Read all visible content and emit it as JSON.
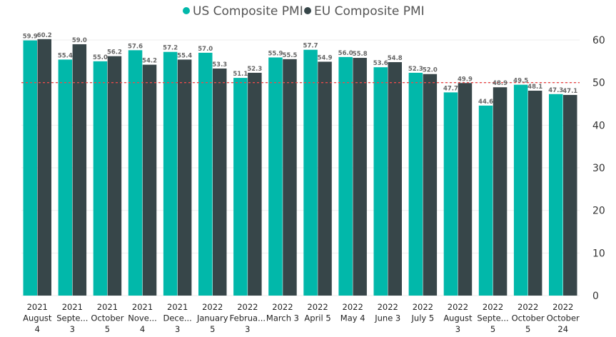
{
  "colors": {
    "us": "#01b8aa",
    "eu": "#374649",
    "reference_line": "#e84a4a",
    "gridline": "#eeeeee"
  },
  "chart_data": {
    "type": "bar",
    "categories": [
      [
        "2021",
        "August",
        "4"
      ],
      [
        "2021",
        "Septe...",
        "3"
      ],
      [
        "2021",
        "October",
        "5"
      ],
      [
        "2021",
        "Nove...",
        "4"
      ],
      [
        "2021",
        "Dece...",
        "3"
      ],
      [
        "2022",
        "January",
        "5"
      ],
      [
        "2022",
        "Februa...",
        "3"
      ],
      [
        "2022",
        "March 3"
      ],
      [
        "2022",
        "April 5"
      ],
      [
        "2022",
        "May 4"
      ],
      [
        "2022",
        "June 3"
      ],
      [
        "2022",
        "July 5"
      ],
      [
        "2022",
        "August",
        "3"
      ],
      [
        "2022",
        "Septe...",
        "5"
      ],
      [
        "2022",
        "October",
        "5"
      ],
      [
        "2022",
        "October",
        "24"
      ]
    ],
    "series": [
      {
        "name": "US Composite PMI",
        "color": "#01b8aa",
        "values": [
          59.9,
          55.4,
          55.0,
          57.6,
          57.2,
          57.0,
          51.1,
          55.9,
          57.7,
          56.0,
          53.6,
          52.3,
          47.7,
          44.6,
          49.5,
          47.3
        ],
        "labels": [
          "59.9",
          "55.4",
          "55.0",
          "57.6",
          "57.2",
          "57.0",
          "51.1",
          "55.9",
          "57.7",
          "56.0",
          "53.6",
          "52.3",
          "47.7",
          "44.6",
          "49.5",
          "47.3"
        ]
      },
      {
        "name": "EU Composite PMI",
        "color": "#374649",
        "values": [
          60.2,
          59.0,
          56.2,
          54.2,
          55.4,
          53.3,
          52.3,
          55.5,
          54.9,
          55.8,
          54.8,
          52.0,
          49.9,
          48.9,
          48.1,
          47.1
        ],
        "labels": [
          "60.2",
          "59.0",
          "56.2",
          "54.2",
          "55.4",
          "53.3",
          "52.3",
          "55.5",
          "54.9",
          "55.8",
          "54.8",
          "52.0",
          "49.9",
          "48.9",
          "48.1",
          "47.1"
        ]
      }
    ],
    "ylim": [
      0,
      60
    ],
    "yticks": [
      0,
      10,
      20,
      30,
      40,
      50,
      60
    ],
    "y_axis_side": "right",
    "reference_line": {
      "value": 50,
      "style": "dashed"
    },
    "grid": true,
    "legend_position": "top-center",
    "title": "",
    "xlabel": "",
    "ylabel": ""
  }
}
